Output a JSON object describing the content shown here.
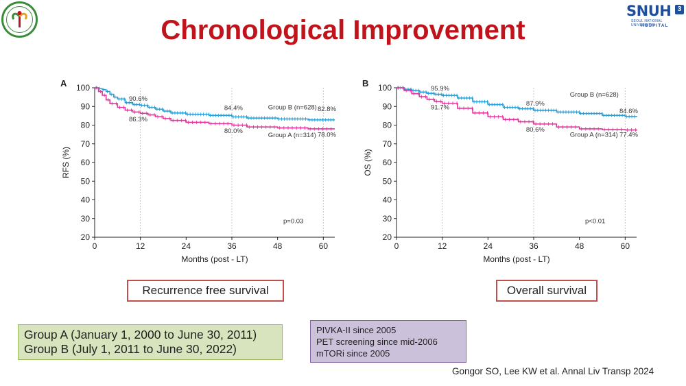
{
  "slide": {
    "title": "Chronological Improvement",
    "logo_right": {
      "main": "SNUH",
      "badge": "3",
      "sub1": "SEOUL NATIONAL UNIVERSITY",
      "sub2": "HOSPITAL"
    },
    "caption_a": "Recurrence free survival",
    "caption_b": "Overall survival",
    "groups": [
      "Group A (January 1, 2000 to June 30, 2011)",
      "Group B (July 1, 2011 to June 30, 2022)"
    ],
    "notes": [
      "PIVKA-II since 2005",
      "PET screening since mid-2006",
      "mTORi since 2005"
    ],
    "citation": "Gongor SO, Lee KW et al. Annal Liv Transp 2024"
  },
  "colors": {
    "title": "#c0141c",
    "group_a": "#e0359b",
    "group_b": "#2a9fd6",
    "caption_border": "#c0504d",
    "groups_bg": "#d7e4bd",
    "notes_bg": "#ccc1da"
  },
  "chart_data": [
    {
      "type": "line",
      "panel": "A",
      "xlabel": "Months (post - LT)",
      "ylabel": "RFS (%)",
      "xlim": [
        0,
        63
      ],
      "ylim": [
        20,
        100
      ],
      "xticks": [
        0,
        12,
        24,
        36,
        48,
        60
      ],
      "yticks": [
        20,
        30,
        40,
        50,
        60,
        70,
        80,
        90,
        100
      ],
      "vlines": [
        12,
        36,
        60
      ],
      "pvalue": "p=0.03",
      "series": [
        {
          "name": "Group B (n=628)",
          "color": "#2a9fd6",
          "x": [
            0,
            1,
            2,
            3,
            4,
            5,
            6,
            8,
            10,
            12,
            14,
            16,
            18,
            20,
            24,
            30,
            36,
            40,
            48,
            56,
            63
          ],
          "y": [
            100,
            99.5,
            99,
            98,
            96.5,
            95,
            94,
            92,
            91,
            90.6,
            89.5,
            88.5,
            87.5,
            86.5,
            85.8,
            85.2,
            84.4,
            83.8,
            83.3,
            82.8,
            82.8
          ]
        },
        {
          "name": "Group A (n=314)",
          "color": "#e0359b",
          "x": [
            0,
            1,
            2,
            3,
            4,
            6,
            8,
            10,
            12,
            14,
            16,
            18,
            20,
            24,
            30,
            36,
            40,
            48,
            56,
            63
          ],
          "y": [
            100,
            98,
            96,
            93.5,
            91.5,
            89.5,
            88,
            87,
            86.3,
            85.5,
            84.5,
            83.5,
            82.5,
            81.5,
            80.8,
            80,
            79,
            78.5,
            78,
            78
          ]
        }
      ],
      "labels": [
        {
          "text": "90.6%",
          "x": 9,
          "y": 93
        },
        {
          "text": "86.3%",
          "x": 9,
          "y": 82
        },
        {
          "text": "84.4%",
          "x": 34,
          "y": 88
        },
        {
          "text": "80.0%",
          "x": 34,
          "y": 75.8
        },
        {
          "text": "82.8%",
          "x": 58.5,
          "y": 87.5
        },
        {
          "text": "78.0%",
          "x": 58.5,
          "y": 73.8
        },
        {
          "text": "Group B (n=628)",
          "x": 45.5,
          "y": 88.5
        },
        {
          "text": "Group A (n=314)",
          "x": 45.5,
          "y": 73.5
        }
      ]
    },
    {
      "type": "line",
      "panel": "B",
      "xlabel": "Months (post - LT)",
      "ylabel": "OS (%)",
      "xlim": [
        0,
        63
      ],
      "ylim": [
        20,
        100
      ],
      "xticks": [
        0,
        12,
        24,
        36,
        48,
        60
      ],
      "yticks": [
        20,
        30,
        40,
        50,
        60,
        70,
        80,
        90,
        100
      ],
      "vlines": [
        12,
        36,
        60
      ],
      "pvalue": "p<0.01",
      "series": [
        {
          "name": "Group B (n=628)",
          "color": "#2a9fd6",
          "x": [
            0,
            2,
            4,
            6,
            8,
            10,
            12,
            16,
            20,
            24,
            28,
            32,
            36,
            42,
            48,
            54,
            60,
            63
          ],
          "y": [
            100,
            99.2,
            98.5,
            97.7,
            97,
            96.5,
            95.9,
            94.5,
            92.5,
            91,
            89.5,
            88.8,
            87.9,
            87,
            86.2,
            85.2,
            84.6,
            84.3
          ]
        },
        {
          "name": "Group A (n=314)",
          "color": "#e0359b",
          "x": [
            0,
            2,
            4,
            6,
            8,
            10,
            12,
            16,
            20,
            24,
            28,
            32,
            36,
            42,
            48,
            54,
            60,
            63
          ],
          "y": [
            100,
            98.5,
            96.8,
            95.2,
            93.8,
            92.7,
            91.7,
            89,
            86.5,
            84.5,
            83,
            81.8,
            80.6,
            79,
            78,
            77.6,
            77.4,
            77
          ]
        }
      ],
      "labels": [
        {
          "text": "95.9%",
          "x": 9,
          "y": 98.5
        },
        {
          "text": "91.7%",
          "x": 9,
          "y": 88.5
        },
        {
          "text": "87.9%",
          "x": 34,
          "y": 90.5
        },
        {
          "text": "80.6%",
          "x": 34,
          "y": 76.5
        },
        {
          "text": "84.6%",
          "x": 58.5,
          "y": 86.5
        },
        {
          "text": "77.4%",
          "x": 58.5,
          "y": 73.8
        },
        {
          "text": "Group B (n=628)",
          "x": 45.5,
          "y": 95.2
        },
        {
          "text": "Group A (n=314)",
          "x": 45.5,
          "y": 73.8
        }
      ]
    }
  ]
}
